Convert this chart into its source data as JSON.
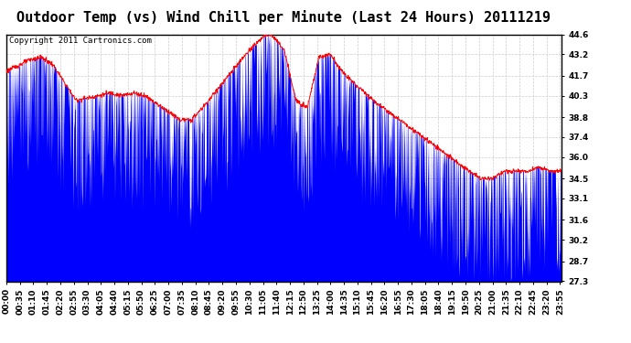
{
  "title": "Outdoor Temp (vs) Wind Chill per Minute (Last 24 Hours) 20111219",
  "copyright": "Copyright 2011 Cartronics.com",
  "yticks": [
    27.3,
    28.7,
    30.2,
    31.6,
    33.1,
    34.5,
    36.0,
    37.4,
    38.8,
    40.3,
    41.7,
    43.2,
    44.6
  ],
  "ylim": [
    27.3,
    44.6
  ],
  "outer_bg_color": "#ffffff",
  "plot_bg_color": "#ffffff",
  "red_line_color": "#ff0000",
  "blue_fill_color": "#0000ff",
  "grid_color": "#cccccc",
  "title_fontsize": 11,
  "copyright_fontsize": 6.5,
  "tick_fontsize": 6.5,
  "outdoor_keypoints": [
    [
      0,
      42.0
    ],
    [
      60,
      42.8
    ],
    [
      90,
      43.0
    ],
    [
      120,
      42.5
    ],
    [
      180,
      40.0
    ],
    [
      240,
      40.3
    ],
    [
      270,
      40.5
    ],
    [
      300,
      40.3
    ],
    [
      330,
      40.5
    ],
    [
      360,
      40.3
    ],
    [
      420,
      39.2
    ],
    [
      450,
      38.6
    ],
    [
      480,
      38.6
    ],
    [
      510,
      39.5
    ],
    [
      540,
      40.5
    ],
    [
      570,
      41.5
    ],
    [
      600,
      42.5
    ],
    [
      630,
      43.5
    ],
    [
      660,
      44.3
    ],
    [
      675,
      44.6
    ],
    [
      690,
      44.5
    ],
    [
      720,
      43.5
    ],
    [
      750,
      40.0
    ],
    [
      780,
      39.5
    ],
    [
      810,
      43.0
    ],
    [
      840,
      43.2
    ],
    [
      870,
      42.0
    ],
    [
      900,
      41.2
    ],
    [
      930,
      40.5
    ],
    [
      960,
      39.8
    ],
    [
      990,
      39.2
    ],
    [
      1020,
      38.6
    ],
    [
      1050,
      38.0
    ],
    [
      1080,
      37.4
    ],
    [
      1110,
      36.8
    ],
    [
      1140,
      36.2
    ],
    [
      1170,
      35.6
    ],
    [
      1200,
      35.0
    ],
    [
      1230,
      34.5
    ],
    [
      1260,
      34.5
    ],
    [
      1290,
      35.0
    ],
    [
      1320,
      35.0
    ],
    [
      1350,
      35.0
    ],
    [
      1380,
      35.3
    ],
    [
      1410,
      35.0
    ],
    [
      1439,
      35.0
    ]
  ],
  "spike_seed": 123,
  "n_spikes": 700,
  "spike_max": 8.0
}
